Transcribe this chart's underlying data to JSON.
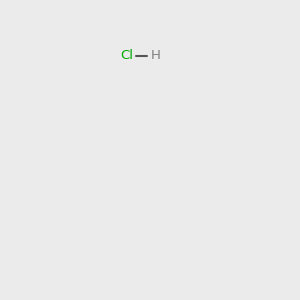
{
  "background_color": "#ebebeb",
  "bond_color": "#000000",
  "atom_colors": {
    "O": "#ff0000",
    "N": "#0000cc",
    "Cl_green": "#00aa00",
    "Cl_gray": "#3f883f",
    "H_gray": "#7f7f7f",
    "C": "#000000"
  },
  "figsize": [
    3.0,
    3.0
  ],
  "dpi": 100
}
